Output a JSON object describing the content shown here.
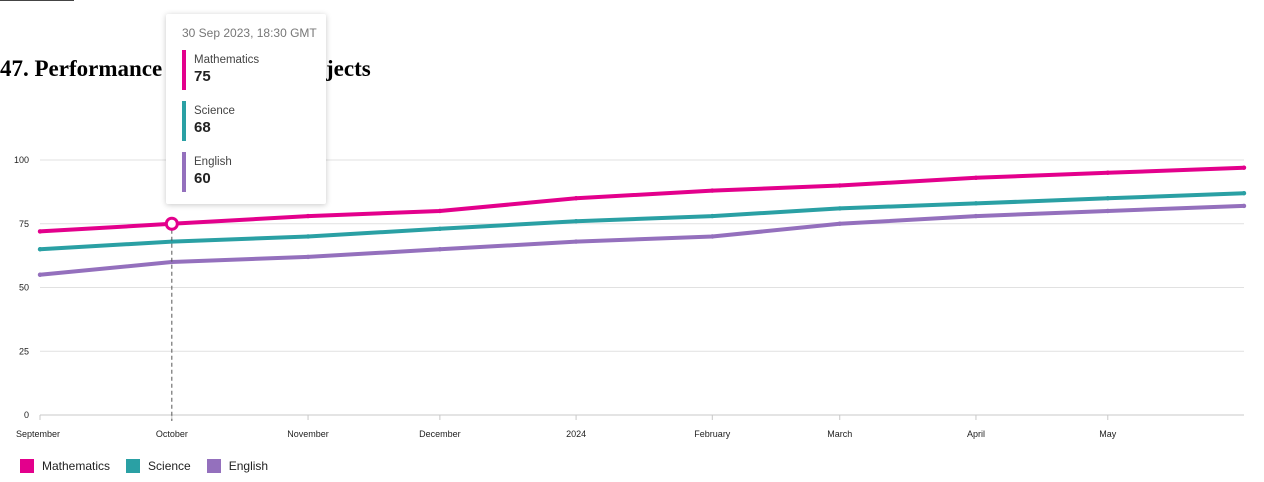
{
  "page": {
    "title": "47. Performance in Different Subjects"
  },
  "colors": {
    "Mathematics": "#e3008c",
    "Science": "#2aa0a4",
    "English": "#9470bd"
  },
  "tooltip": {
    "header": "30 Sep 2023, 18:30 GMT",
    "rows": [
      {
        "name": "Mathematics",
        "value": "75"
      },
      {
        "name": "Science",
        "value": "68"
      },
      {
        "name": "English",
        "value": "60"
      }
    ]
  },
  "chart_data": {
    "type": "line",
    "title": "47. Performance in Different Subjects",
    "xlabel": "",
    "ylabel": "",
    "ylim": [
      0,
      100
    ],
    "yticks": [
      0,
      25,
      50,
      75,
      100
    ],
    "x_axis_labels": [
      "September",
      "October",
      "November",
      "December",
      "2024",
      "February",
      "March",
      "April",
      "May"
    ],
    "x": [
      "2023-08-31",
      "2023-09-30",
      "2023-10-31",
      "2023-11-30",
      "2023-12-31",
      "2024-01-31",
      "2024-02-29",
      "2024-03-31",
      "2024-04-30",
      "2024-05-31"
    ],
    "series": [
      {
        "name": "Mathematics",
        "values": [
          72,
          75,
          78,
          80,
          85,
          88,
          90,
          93,
          95,
          97
        ]
      },
      {
        "name": "Science",
        "values": [
          65,
          68,
          70,
          73,
          76,
          78,
          81,
          83,
          85,
          87
        ]
      },
      {
        "name": "English",
        "values": [
          55,
          60,
          62,
          65,
          68,
          70,
          75,
          78,
          80,
          82
        ]
      }
    ],
    "highlight_x": "2023-09-30",
    "grid": true,
    "legend": "bottom-left"
  }
}
